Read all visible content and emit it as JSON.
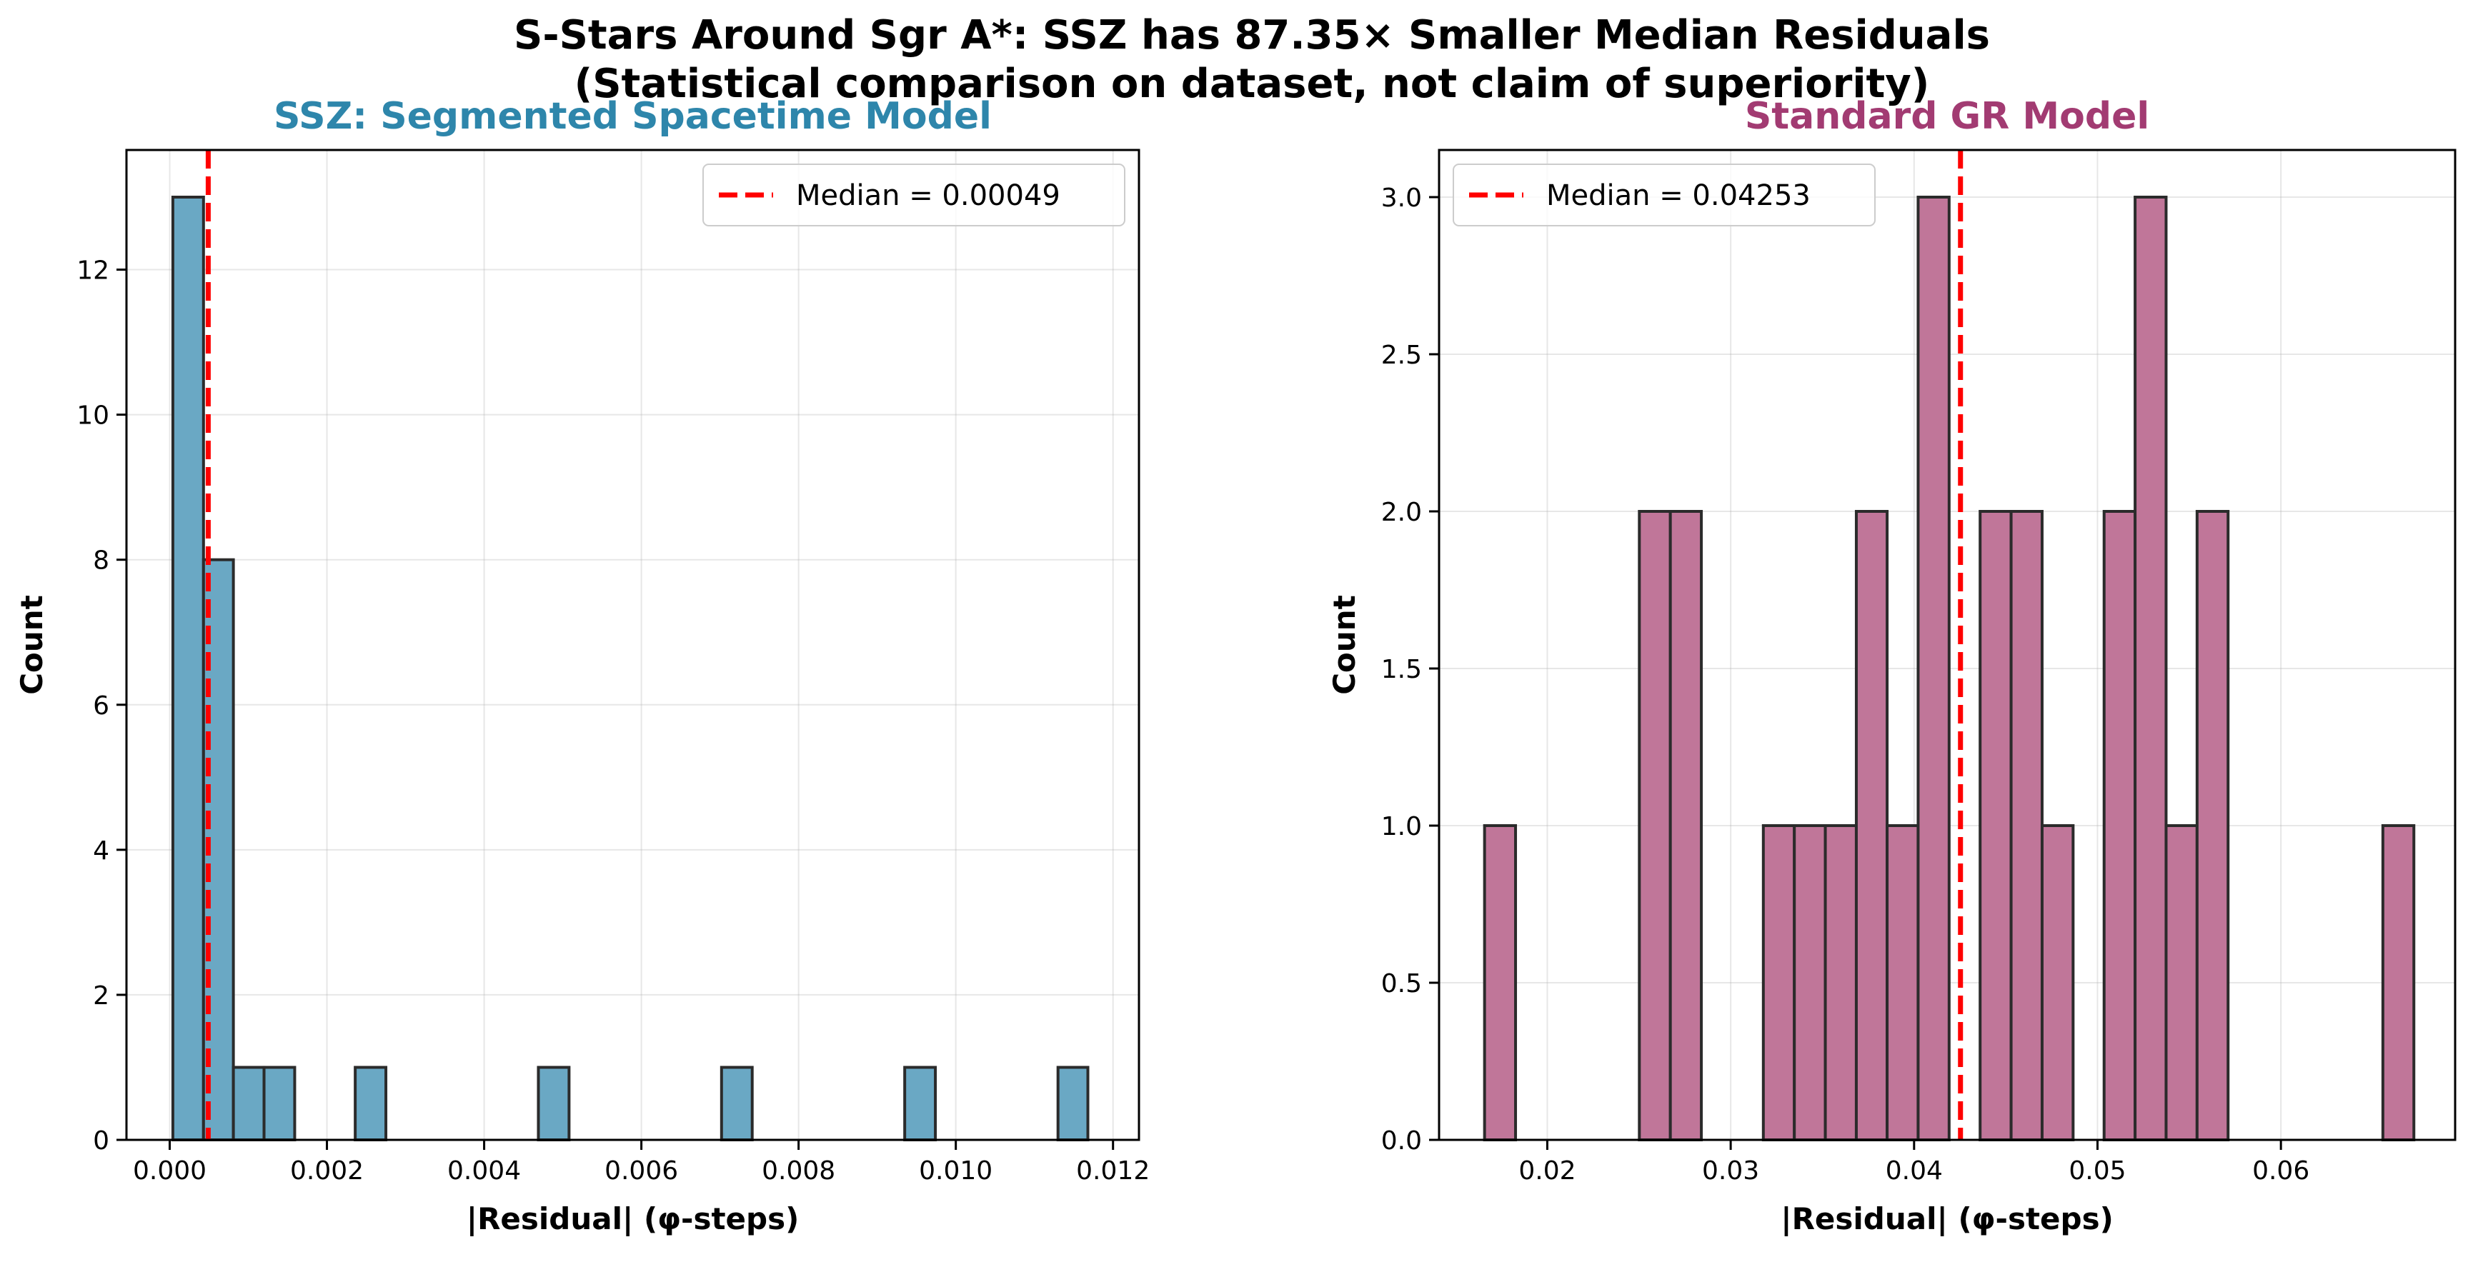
{
  "figure": {
    "suptitle_line1": "S-Stars Around Sgr A*: SSZ has 87.35× Smaller Median Residuals",
    "suptitle_line2": "(Statistical comparison on dataset, not claim of superiority)"
  },
  "chart_data": [
    {
      "type": "bar",
      "title": "SSZ: Segmented Spacetime Model",
      "title_color": "#2e86ab",
      "xlabel": "|Residual| (φ-steps)",
      "ylabel": "Count",
      "xlim": [
        -0.00055,
        0.01233
      ],
      "ylim": [
        0,
        13.65
      ],
      "xticks": [
        0.0,
        0.002,
        0.004,
        0.006,
        0.008,
        0.01,
        0.012
      ],
      "xtick_labels": [
        "0.000",
        "0.002",
        "0.004",
        "0.006",
        "0.008",
        "0.010",
        "0.012"
      ],
      "yticks": [
        0,
        2,
        4,
        6,
        8,
        10,
        12
      ],
      "ytick_labels": [
        "0",
        "2",
        "4",
        "6",
        "8",
        "10",
        "12"
      ],
      "bar_color": "#6aa8c4",
      "edge_color": "#2b2b2b",
      "grid": true,
      "bins": [
        {
          "x0": 4e-05,
          "x1": 0.00043,
          "count": 13
        },
        {
          "x0": 0.00043,
          "x1": 0.00081,
          "count": 8
        },
        {
          "x0": 0.00081,
          "x1": 0.0012,
          "count": 1
        },
        {
          "x0": 0.0012,
          "x1": 0.00159,
          "count": 1
        },
        {
          "x0": 0.00236,
          "x1": 0.00275,
          "count": 1
        },
        {
          "x0": 0.00469,
          "x1": 0.00508,
          "count": 1
        },
        {
          "x0": 0.00702,
          "x1": 0.00741,
          "count": 1
        },
        {
          "x0": 0.00935,
          "x1": 0.00974,
          "count": 1
        },
        {
          "x0": 0.0113,
          "x1": 0.01168,
          "count": 1
        }
      ],
      "median": 0.00049,
      "median_color": "#ff0000",
      "legend_label": "Median = 0.00049",
      "legend_position": "upper right"
    },
    {
      "type": "bar",
      "title": "Standard GR Model",
      "title_color": "#a23b72",
      "xlabel": "|Residual| (φ-steps)",
      "ylabel": "Count",
      "xlim": [
        0.0141,
        0.0695
      ],
      "ylim": [
        0,
        3.15
      ],
      "xticks": [
        0.02,
        0.03,
        0.04,
        0.05,
        0.06
      ],
      "xtick_labels": [
        "0.02",
        "0.03",
        "0.04",
        "0.05",
        "0.06"
      ],
      "yticks": [
        0.0,
        0.5,
        1.0,
        1.5,
        2.0,
        2.5,
        3.0
      ],
      "ytick_labels": [
        "0.0",
        "0.5",
        "1.0",
        "1.5",
        "2.0",
        "2.5",
        "3.0"
      ],
      "bar_color": "#c07699",
      "edge_color": "#2b2b2b",
      "grid": true,
      "bins": [
        {
          "x0": 0.01658,
          "x1": 0.01827,
          "count": 1
        },
        {
          "x0": 0.02502,
          "x1": 0.02671,
          "count": 2
        },
        {
          "x0": 0.02671,
          "x1": 0.0284,
          "count": 2
        },
        {
          "x0": 0.03178,
          "x1": 0.03347,
          "count": 1
        },
        {
          "x0": 0.03347,
          "x1": 0.03516,
          "count": 1
        },
        {
          "x0": 0.03516,
          "x1": 0.03685,
          "count": 1
        },
        {
          "x0": 0.03685,
          "x1": 0.03853,
          "count": 2
        },
        {
          "x0": 0.03853,
          "x1": 0.04022,
          "count": 1
        },
        {
          "x0": 0.04022,
          "x1": 0.04191,
          "count": 3
        },
        {
          "x0": 0.0436,
          "x1": 0.04529,
          "count": 2
        },
        {
          "x0": 0.04529,
          "x1": 0.04698,
          "count": 2
        },
        {
          "x0": 0.04698,
          "x1": 0.04867,
          "count": 1
        },
        {
          "x0": 0.05036,
          "x1": 0.05205,
          "count": 2
        },
        {
          "x0": 0.05205,
          "x1": 0.05374,
          "count": 3
        },
        {
          "x0": 0.05374,
          "x1": 0.05543,
          "count": 1
        },
        {
          "x0": 0.05543,
          "x1": 0.05712,
          "count": 2
        },
        {
          "x0": 0.06556,
          "x1": 0.06725,
          "count": 1
        }
      ],
      "median": 0.04253,
      "median_color": "#ff0000",
      "legend_label": "Median = 0.04253",
      "legend_position": "upper left"
    }
  ]
}
